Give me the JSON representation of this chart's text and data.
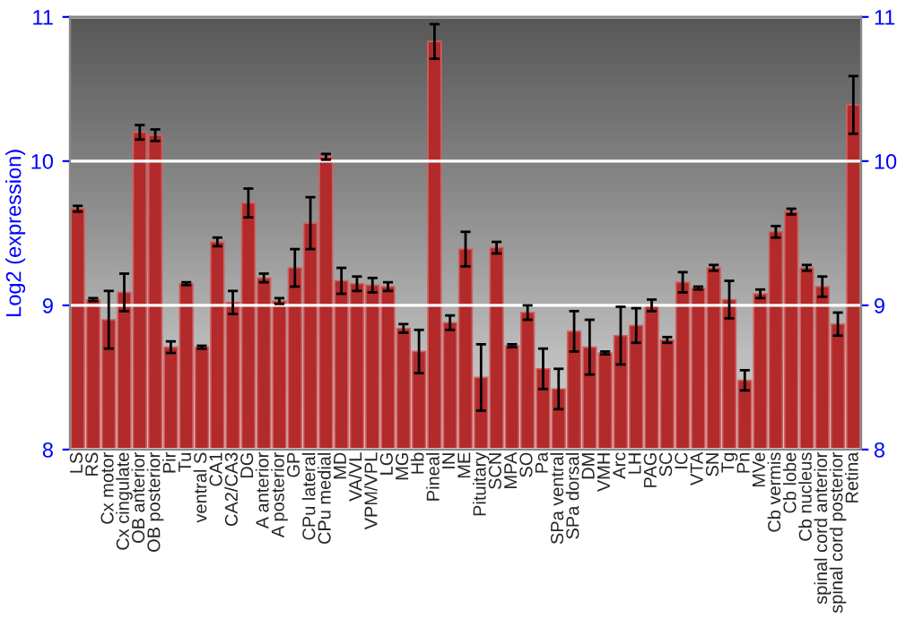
{
  "chart_data": {
    "type": "bar",
    "ylabel": "Log2 (expression)",
    "categories": [
      "LS",
      "RS",
      "Cx motor",
      "Cx cingulate",
      "OB anterior",
      "OB posterior",
      "Pir",
      "Tu",
      "ventral S",
      "CA1",
      "CA2/CA3",
      "DG",
      "A anterior",
      "A posterior",
      "GP",
      "CPu lateral",
      "CPu medial",
      "MD",
      "VA/VL",
      "VPM/VPL",
      "LG",
      "MG",
      "Hb",
      "Pineal",
      "IN",
      "ME",
      "Pituitary",
      "SCN",
      "MPA",
      "SO",
      "Pa",
      "SPa ventral",
      "SPa dorsal",
      "DM",
      "VMH",
      "Arc",
      "LH",
      "PAG",
      "SC",
      "IC",
      "VTA",
      "SN",
      "Tg",
      "Pn",
      "MVe",
      "Cb vermis",
      "Cb lobe",
      "Cb nucleus",
      "spinal cord anterior",
      "spinal cord posterior",
      "Retina"
    ],
    "values": [
      9.67,
      9.04,
      8.9,
      9.09,
      10.2,
      10.18,
      8.71,
      9.15,
      8.71,
      9.44,
      9.02,
      9.71,
      9.19,
      9.03,
      9.26,
      9.57,
      10.03,
      9.17,
      9.15,
      9.14,
      9.13,
      8.84,
      8.68,
      10.83,
      8.88,
      9.39,
      8.5,
      9.4,
      8.72,
      8.95,
      8.56,
      8.42,
      8.82,
      8.71,
      8.67,
      8.79,
      8.86,
      9.0,
      8.76,
      9.16,
      9.12,
      9.26,
      9.04,
      8.48,
      9.08,
      9.51,
      9.65,
      9.26,
      9.13,
      8.87,
      10.39
    ],
    "errors": [
      0.02,
      0.01,
      0.2,
      0.13,
      0.05,
      0.04,
      0.04,
      0.01,
      0.01,
      0.03,
      0.08,
      0.1,
      0.03,
      0.02,
      0.13,
      0.18,
      0.02,
      0.09,
      0.05,
      0.05,
      0.03,
      0.03,
      0.15,
      0.12,
      0.05,
      0.12,
      0.23,
      0.04,
      0.01,
      0.05,
      0.14,
      0.14,
      0.14,
      0.19,
      0.01,
      0.2,
      0.12,
      0.04,
      0.02,
      0.07,
      0.01,
      0.02,
      0.13,
      0.07,
      0.03,
      0.04,
      0.02,
      0.02,
      0.07,
      0.08,
      0.2
    ],
    "color": "#b22a2a",
    "ylim": [
      8,
      11
    ],
    "yticks": [
      8,
      9,
      10,
      11
    ],
    "y2lim": [
      8,
      11
    ],
    "y2ticks": [
      8,
      9,
      10,
      11
    ],
    "grid": "y",
    "legend": false
  }
}
